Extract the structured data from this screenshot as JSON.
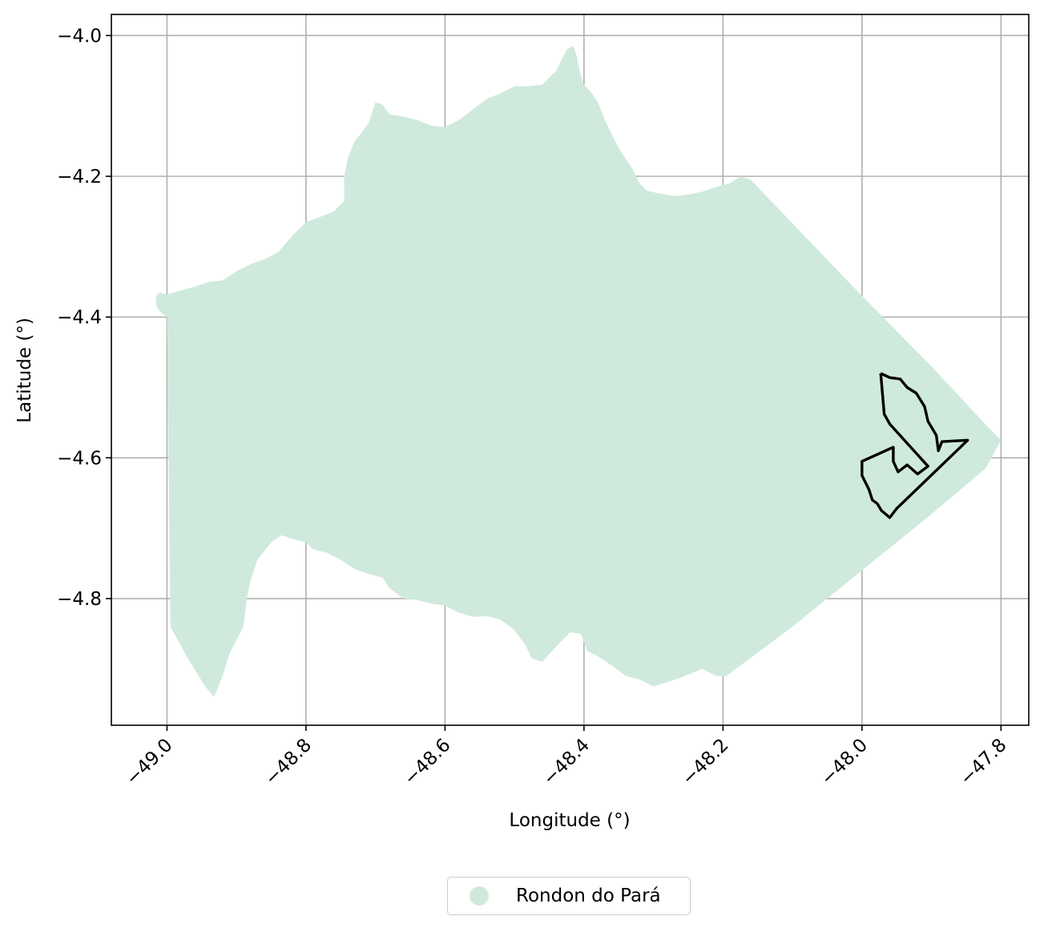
{
  "chart_data": {
    "type": "map",
    "xlabel": "Longitude (°)",
    "ylabel": "Latitude (°)",
    "xlim": [
      -49.08,
      -47.76
    ],
    "ylim": [
      -4.98,
      -3.97
    ],
    "xticks": [
      -49.0,
      -48.8,
      -48.6,
      -48.4,
      -48.2,
      -48.0,
      -47.8
    ],
    "xtick_labels": [
      "−49.0",
      "−48.8",
      "−48.6",
      "−48.4",
      "−48.2",
      "−48.0",
      "−47.8"
    ],
    "yticks": [
      -4.0,
      -4.2,
      -4.4,
      -4.6,
      -4.8
    ],
    "ytick_labels": [
      "−4.0",
      "−4.2",
      "−4.4",
      "−4.6",
      "−4.8"
    ],
    "grid": true,
    "legend_position": "bottom-center",
    "legend": [
      {
        "label": "Rondon do Pará",
        "color": "#cfeadc",
        "marker": "circle"
      }
    ],
    "regions": [
      {
        "name": "Rondon do Pará",
        "fill": "#cfeadc",
        "polygon": [
          [
            -49.015,
            -4.385
          ],
          [
            -49.016,
            -4.37
          ],
          [
            -49.01,
            -4.365
          ],
          [
            -49.0,
            -4.368
          ],
          [
            -48.98,
            -4.362
          ],
          [
            -48.96,
            -4.357
          ],
          [
            -48.94,
            -4.35
          ],
          [
            -48.92,
            -4.348
          ],
          [
            -48.9,
            -4.335
          ],
          [
            -48.88,
            -4.325
          ],
          [
            -48.86,
            -4.318
          ],
          [
            -48.84,
            -4.308
          ],
          [
            -48.82,
            -4.285
          ],
          [
            -48.8,
            -4.265
          ],
          [
            -48.78,
            -4.258
          ],
          [
            -48.76,
            -4.25
          ],
          [
            -48.745,
            -4.235
          ],
          [
            -48.745,
            -4.2
          ],
          [
            -48.74,
            -4.175
          ],
          [
            -48.73,
            -4.15
          ],
          [
            -48.72,
            -4.138
          ],
          [
            -48.71,
            -4.125
          ],
          [
            -48.7,
            -4.095
          ],
          [
            -48.69,
            -4.098
          ],
          [
            -48.68,
            -4.112
          ],
          [
            -48.66,
            -4.115
          ],
          [
            -48.64,
            -4.12
          ],
          [
            -48.62,
            -4.128
          ],
          [
            -48.6,
            -4.13
          ],
          [
            -48.58,
            -4.12
          ],
          [
            -48.56,
            -4.105
          ],
          [
            -48.54,
            -4.09
          ],
          [
            -48.52,
            -4.082
          ],
          [
            -48.5,
            -4.072
          ],
          [
            -48.48,
            -4.072
          ],
          [
            -48.46,
            -4.07
          ],
          [
            -48.44,
            -4.05
          ],
          [
            -48.425,
            -4.02
          ],
          [
            -48.415,
            -4.015
          ],
          [
            -48.41,
            -4.03
          ],
          [
            -48.405,
            -4.055
          ],
          [
            -48.4,
            -4.07
          ],
          [
            -48.39,
            -4.08
          ],
          [
            -48.38,
            -4.095
          ],
          [
            -48.37,
            -4.12
          ],
          [
            -48.36,
            -4.14
          ],
          [
            -48.35,
            -4.16
          ],
          [
            -48.34,
            -4.175
          ],
          [
            -48.33,
            -4.19
          ],
          [
            -48.32,
            -4.21
          ],
          [
            -48.31,
            -4.22
          ],
          [
            -48.29,
            -4.225
          ],
          [
            -48.27,
            -4.228
          ],
          [
            -48.25,
            -4.226
          ],
          [
            -48.23,
            -4.222
          ],
          [
            -48.21,
            -4.215
          ],
          [
            -48.19,
            -4.21
          ],
          [
            -48.175,
            -4.2
          ],
          [
            -48.16,
            -4.205
          ],
          [
            -48.0,
            -4.37
          ],
          [
            -47.9,
            -4.47
          ],
          [
            -47.82,
            -4.555
          ],
          [
            -47.8,
            -4.575
          ],
          [
            -47.822,
            -4.615
          ],
          [
            -47.9,
            -4.68
          ],
          [
            -48.0,
            -4.76
          ],
          [
            -48.1,
            -4.84
          ],
          [
            -48.195,
            -4.91
          ],
          [
            -48.21,
            -4.91
          ],
          [
            -48.23,
            -4.9
          ],
          [
            -48.26,
            -4.912
          ],
          [
            -48.3,
            -4.925
          ],
          [
            -48.32,
            -4.915
          ],
          [
            -48.34,
            -4.91
          ],
          [
            -48.36,
            -4.895
          ],
          [
            -48.38,
            -4.882
          ],
          [
            -48.395,
            -4.875
          ],
          [
            -48.405,
            -4.85
          ],
          [
            -48.42,
            -4.848
          ],
          [
            -48.44,
            -4.868
          ],
          [
            -48.46,
            -4.89
          ],
          [
            -48.475,
            -4.885
          ],
          [
            -48.485,
            -4.865
          ],
          [
            -48.5,
            -4.845
          ],
          [
            -48.52,
            -4.83
          ],
          [
            -48.54,
            -4.825
          ],
          [
            -48.56,
            -4.826
          ],
          [
            -48.58,
            -4.82
          ],
          [
            -48.6,
            -4.81
          ],
          [
            -48.62,
            -4.807
          ],
          [
            -48.64,
            -4.802
          ],
          [
            -48.66,
            -4.8
          ],
          [
            -48.68,
            -4.785
          ],
          [
            -48.69,
            -4.77
          ],
          [
            -48.71,
            -4.765
          ],
          [
            -48.73,
            -4.758
          ],
          [
            -48.75,
            -4.745
          ],
          [
            -48.77,
            -4.735
          ],
          [
            -48.79,
            -4.73
          ],
          [
            -48.8,
            -4.72
          ],
          [
            -48.82,
            -4.715
          ],
          [
            -48.835,
            -4.71
          ],
          [
            -48.85,
            -4.72
          ],
          [
            -48.87,
            -4.745
          ],
          [
            -48.88,
            -4.775
          ],
          [
            -48.885,
            -4.8
          ],
          [
            -48.89,
            -4.84
          ],
          [
            -48.91,
            -4.878
          ],
          [
            -48.92,
            -4.91
          ],
          [
            -48.932,
            -4.94
          ],
          [
            -48.945,
            -4.925
          ],
          [
            -48.97,
            -4.885
          ],
          [
            -48.995,
            -4.84
          ],
          [
            -49.0,
            -4.4
          ],
          [
            -49.01,
            -4.392
          ]
        ]
      }
    ],
    "outlines": [
      {
        "stroke": "#000000",
        "polyline": [
          [
            -47.973,
            -4.48
          ],
          [
            -47.96,
            -4.486
          ],
          [
            -47.945,
            -4.488
          ],
          [
            -47.935,
            -4.5
          ],
          [
            -47.922,
            -4.508
          ],
          [
            -47.91,
            -4.527
          ],
          [
            -47.905,
            -4.548
          ],
          [
            -47.893,
            -4.568
          ],
          [
            -47.89,
            -4.59
          ],
          [
            -47.885,
            -4.577
          ],
          [
            -47.848,
            -4.575
          ],
          [
            -47.95,
            -4.672
          ],
          [
            -47.96,
            -4.685
          ],
          [
            -47.972,
            -4.675
          ],
          [
            -47.978,
            -4.665
          ],
          [
            -47.985,
            -4.66
          ],
          [
            -47.99,
            -4.645
          ],
          [
            -48.0,
            -4.625
          ],
          [
            -48.0,
            -4.605
          ],
          [
            -47.955,
            -4.585
          ],
          [
            -47.955,
            -4.605
          ],
          [
            -47.948,
            -4.62
          ],
          [
            -47.935,
            -4.61
          ],
          [
            -47.92,
            -4.623
          ],
          [
            -47.905,
            -4.612
          ],
          [
            -47.916,
            -4.6
          ],
          [
            -47.96,
            -4.552
          ],
          [
            -47.968,
            -4.538
          ],
          [
            -47.973,
            -4.48
          ]
        ]
      }
    ]
  }
}
